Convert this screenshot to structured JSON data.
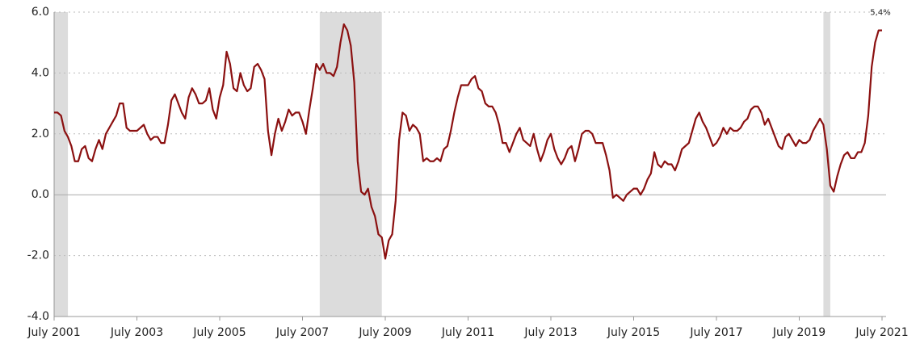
{
  "chart_data": {
    "type": "line",
    "x": [
      "2001-07",
      "2001-08",
      "2001-09",
      "2001-10",
      "2001-11",
      "2001-12",
      "2002-01",
      "2002-02",
      "2002-03",
      "2002-04",
      "2002-05",
      "2002-06",
      "2002-07",
      "2002-08",
      "2002-09",
      "2002-10",
      "2002-11",
      "2002-12",
      "2003-01",
      "2003-02",
      "2003-03",
      "2003-04",
      "2003-05",
      "2003-06",
      "2003-07",
      "2003-08",
      "2003-09",
      "2003-10",
      "2003-11",
      "2003-12",
      "2004-01",
      "2004-02",
      "2004-03",
      "2004-04",
      "2004-05",
      "2004-06",
      "2004-07",
      "2004-08",
      "2004-09",
      "2004-10",
      "2004-11",
      "2004-12",
      "2005-01",
      "2005-02",
      "2005-03",
      "2005-04",
      "2005-05",
      "2005-06",
      "2005-07",
      "2005-08",
      "2005-09",
      "2005-10",
      "2005-11",
      "2005-12",
      "2006-01",
      "2006-02",
      "2006-03",
      "2006-04",
      "2006-05",
      "2006-06",
      "2006-07",
      "2006-08",
      "2006-09",
      "2006-10",
      "2006-11",
      "2006-12",
      "2007-01",
      "2007-02",
      "2007-03",
      "2007-04",
      "2007-05",
      "2007-06",
      "2007-07",
      "2007-08",
      "2007-09",
      "2007-10",
      "2007-11",
      "2007-12",
      "2008-01",
      "2008-02",
      "2008-03",
      "2008-04",
      "2008-05",
      "2008-06",
      "2008-07",
      "2008-08",
      "2008-09",
      "2008-10",
      "2008-11",
      "2008-12",
      "2009-01",
      "2009-02",
      "2009-03",
      "2009-04",
      "2009-05",
      "2009-06",
      "2009-07",
      "2009-08",
      "2009-09",
      "2009-10",
      "2009-11",
      "2009-12",
      "2010-01",
      "2010-02",
      "2010-03",
      "2010-04",
      "2010-05",
      "2010-06",
      "2010-07",
      "2010-08",
      "2010-09",
      "2010-10",
      "2010-11",
      "2010-12",
      "2011-01",
      "2011-02",
      "2011-03",
      "2011-04",
      "2011-05",
      "2011-06",
      "2011-07",
      "2011-08",
      "2011-09",
      "2011-10",
      "2011-11",
      "2011-12",
      "2012-01",
      "2012-02",
      "2012-03",
      "2012-04",
      "2012-05",
      "2012-06",
      "2012-07",
      "2012-08",
      "2012-09",
      "2012-10",
      "2012-11",
      "2012-12",
      "2013-01",
      "2013-02",
      "2013-03",
      "2013-04",
      "2013-05",
      "2013-06",
      "2013-07",
      "2013-08",
      "2013-09",
      "2013-10",
      "2013-11",
      "2013-12",
      "2014-01",
      "2014-02",
      "2014-03",
      "2014-04",
      "2014-05",
      "2014-06",
      "2014-07",
      "2014-08",
      "2014-09",
      "2014-10",
      "2014-11",
      "2014-12",
      "2015-01",
      "2015-02",
      "2015-03",
      "2015-04",
      "2015-05",
      "2015-06",
      "2015-07",
      "2015-08",
      "2015-09",
      "2015-10",
      "2015-11",
      "2015-12",
      "2016-01",
      "2016-02",
      "2016-03",
      "2016-04",
      "2016-05",
      "2016-06",
      "2016-07",
      "2016-08",
      "2016-09",
      "2016-10",
      "2016-11",
      "2016-12",
      "2017-01",
      "2017-02",
      "2017-03",
      "2017-04",
      "2017-05",
      "2017-06",
      "2017-07",
      "2017-08",
      "2017-09",
      "2017-10",
      "2017-11",
      "2017-12",
      "2018-01",
      "2018-02",
      "2018-03",
      "2018-04",
      "2018-05",
      "2018-06",
      "2018-07",
      "2018-08",
      "2018-09",
      "2018-10",
      "2018-11",
      "2018-12",
      "2019-01",
      "2019-02",
      "2019-03",
      "2019-04",
      "2019-05",
      "2019-06",
      "2019-07",
      "2019-08",
      "2019-09",
      "2019-10",
      "2019-11",
      "2019-12",
      "2020-01",
      "2020-02",
      "2020-03",
      "2020-04",
      "2020-05",
      "2020-06",
      "2020-07",
      "2020-08",
      "2020-09",
      "2020-10",
      "2020-11",
      "2020-12",
      "2021-01",
      "2021-02",
      "2021-03",
      "2021-04",
      "2021-05",
      "2021-06",
      "2021-07"
    ],
    "values": [
      2.7,
      2.7,
      2.6,
      2.1,
      1.9,
      1.6,
      1.1,
      1.1,
      1.5,
      1.6,
      1.2,
      1.1,
      1.5,
      1.8,
      1.5,
      2.0,
      2.2,
      2.4,
      2.6,
      3.0,
      3.0,
      2.2,
      2.1,
      2.1,
      2.1,
      2.2,
      2.3,
      2.0,
      1.8,
      1.9,
      1.9,
      1.7,
      1.7,
      2.3,
      3.1,
      3.3,
      3.0,
      2.7,
      2.5,
      3.2,
      3.5,
      3.3,
      3.0,
      3.0,
      3.1,
      3.5,
      2.8,
      2.5,
      3.2,
      3.6,
      4.7,
      4.3,
      3.5,
      3.4,
      4.0,
      3.6,
      3.4,
      3.5,
      4.2,
      4.3,
      4.1,
      3.8,
      2.1,
      1.3,
      2.0,
      2.5,
      2.1,
      2.4,
      2.8,
      2.6,
      2.7,
      2.7,
      2.4,
      2.0,
      2.8,
      3.5,
      4.3,
      4.1,
      4.3,
      4.0,
      4.0,
      3.9,
      4.2,
      5.0,
      5.6,
      5.4,
      4.9,
      3.7,
      1.1,
      0.1,
      0.0,
      0.2,
      -0.4,
      -0.7,
      -1.3,
      -1.4,
      -2.1,
      -1.5,
      -1.3,
      -0.2,
      1.8,
      2.7,
      2.6,
      2.1,
      2.3,
      2.2,
      2.0,
      1.1,
      1.2,
      1.1,
      1.1,
      1.2,
      1.1,
      1.5,
      1.6,
      2.1,
      2.7,
      3.2,
      3.6,
      3.6,
      3.6,
      3.8,
      3.9,
      3.5,
      3.4,
      3.0,
      2.9,
      2.9,
      2.7,
      2.3,
      1.7,
      1.7,
      1.4,
      1.7,
      2.0,
      2.2,
      1.8,
      1.7,
      1.6,
      2.0,
      1.5,
      1.1,
      1.4,
      1.8,
      2.0,
      1.5,
      1.2,
      1.0,
      1.2,
      1.5,
      1.6,
      1.1,
      1.5,
      2.0,
      2.1,
      2.1,
      2.0,
      1.7,
      1.7,
      1.7,
      1.3,
      0.8,
      -0.1,
      0.0,
      -0.1,
      -0.2,
      0.0,
      0.1,
      0.2,
      0.2,
      0.0,
      0.2,
      0.5,
      0.7,
      1.4,
      1.0,
      0.9,
      1.1,
      1.0,
      1.0,
      0.8,
      1.1,
      1.5,
      1.6,
      1.7,
      2.1,
      2.5,
      2.7,
      2.4,
      2.2,
      1.9,
      1.6,
      1.7,
      1.9,
      2.2,
      2.0,
      2.2,
      2.1,
      2.1,
      2.2,
      2.4,
      2.5,
      2.8,
      2.9,
      2.9,
      2.7,
      2.3,
      2.5,
      2.2,
      1.9,
      1.6,
      1.5,
      1.9,
      2.0,
      1.8,
      1.6,
      1.8,
      1.7,
      1.7,
      1.8,
      2.1,
      2.3,
      2.5,
      2.3,
      1.5,
      0.3,
      0.1,
      0.6,
      1.0,
      1.3,
      1.4,
      1.2,
      1.2,
      1.4,
      1.4,
      1.7,
      2.6,
      4.2,
      5.0,
      5.4,
      5.4
    ],
    "color": "#8b1010",
    "xlim": [
      "2001-07",
      "2021-07"
    ],
    "xticks": [
      {
        "value": "2001-07",
        "label": "July 2001"
      },
      {
        "value": "2003-07",
        "label": "July 2003"
      },
      {
        "value": "2005-07",
        "label": "July 2005"
      },
      {
        "value": "2007-07",
        "label": "July 2007"
      },
      {
        "value": "2009-07",
        "label": "July 2009"
      },
      {
        "value": "2011-07",
        "label": "July 2011"
      },
      {
        "value": "2013-07",
        "label": "July 2013"
      },
      {
        "value": "2015-07",
        "label": "July 2015"
      },
      {
        "value": "2017-07",
        "label": "July 2017"
      },
      {
        "value": "2019-07",
        "label": "July 2019"
      },
      {
        "value": "2021-07",
        "label": "July 2021"
      }
    ],
    "ylim": [
      -4,
      6
    ],
    "yticks": [
      {
        "value": -4,
        "label": "-4.0"
      },
      {
        "value": -2,
        "label": "-2.0"
      },
      {
        "value": 0,
        "label": "0.0"
      },
      {
        "value": 2,
        "label": "2.0"
      },
      {
        "value": 4,
        "label": "4.0"
      },
      {
        "value": 6,
        "label": "6.0"
      }
    ],
    "grid": true,
    "shaded_periods": [
      [
        "2001-03",
        "2001-11"
      ],
      [
        "2007-12",
        "2009-06"
      ],
      [
        "2020-02",
        "2020-04"
      ]
    ],
    "shade_color": "#dcdcdc",
    "annotations": [
      {
        "text": "5,4%",
        "x": "2021-07",
        "y": 5.4
      }
    ]
  }
}
